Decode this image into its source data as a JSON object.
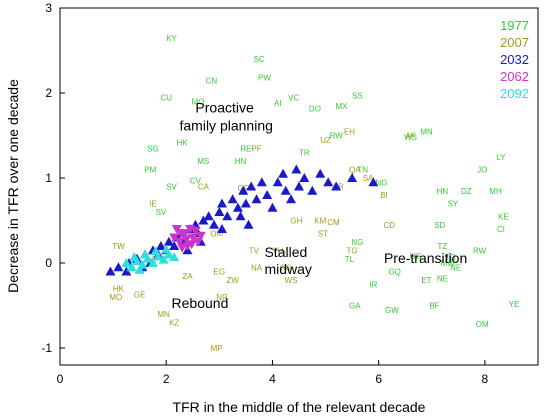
{
  "chart_data": {
    "type": "scatter",
    "xlabel": "TFR in the middle of the relevant decade",
    "ylabel": "Decrease in TFR over one decade",
    "xlim": [
      0,
      9
    ],
    "ylim": [
      -1.2,
      3
    ],
    "xticks": [
      "0",
      "2",
      "4",
      "6",
      "8"
    ],
    "xtick_values": [
      0,
      2,
      4,
      6,
      8
    ],
    "yticks": [
      "-1",
      "0",
      "1",
      "2",
      "3"
    ],
    "ytick_values": [
      -1,
      0,
      1,
      2,
      3
    ],
    "grid": false,
    "legend_position": "top-right",
    "annotations": [
      {
        "text": "Proactive",
        "x": 2.55,
        "y": 1.77
      },
      {
        "text": "family planning",
        "x": 2.25,
        "y": 1.56
      },
      {
        "text": "Pre-transition",
        "x": 6.1,
        "y": 0.0
      },
      {
        "text": "Stalled",
        "x": 3.85,
        "y": 0.07
      },
      {
        "text": "midway",
        "x": 3.85,
        "y": -0.13
      },
      {
        "text": "Rebound",
        "x": 2.1,
        "y": -0.53
      }
    ],
    "series": [
      {
        "name": "1977",
        "color": "#33cc33",
        "marker": "label",
        "points": [
          {
            "label": "KY",
            "x": 2.1,
            "y": 2.65
          },
          {
            "label": "SC",
            "x": 3.75,
            "y": 2.4
          },
          {
            "label": "CN",
            "x": 2.85,
            "y": 2.15
          },
          {
            "label": "PW",
            "x": 3.85,
            "y": 2.18
          },
          {
            "label": "CU",
            "x": 2.0,
            "y": 1.95
          },
          {
            "label": "MO",
            "x": 2.6,
            "y": 1.9
          },
          {
            "label": "SS",
            "x": 5.6,
            "y": 1.97
          },
          {
            "label": "VC",
            "x": 4.4,
            "y": 1.95
          },
          {
            "label": "MX",
            "x": 5.3,
            "y": 1.85
          },
          {
            "label": "AI",
            "x": 4.1,
            "y": 1.88
          },
          {
            "label": "DO",
            "x": 4.8,
            "y": 1.82
          },
          {
            "label": "HK",
            "x": 2.3,
            "y": 1.42
          },
          {
            "label": "SG",
            "x": 1.75,
            "y": 1.35
          },
          {
            "label": "RE",
            "x": 3.5,
            "y": 1.35
          },
          {
            "label": "MN",
            "x": 6.9,
            "y": 1.55
          },
          {
            "label": "WS",
            "x": 6.6,
            "y": 1.48
          },
          {
            "label": "RW",
            "x": 5.2,
            "y": 1.5
          },
          {
            "label": "TR",
            "x": 4.6,
            "y": 1.3
          },
          {
            "label": "TN",
            "x": 5.7,
            "y": 1.1
          },
          {
            "label": "PM",
            "x": 1.7,
            "y": 1.1
          },
          {
            "label": "MS",
            "x": 2.7,
            "y": 1.2
          },
          {
            "label": "HN",
            "x": 3.4,
            "y": 1.2
          },
          {
            "label": "LY",
            "x": 8.3,
            "y": 1.25
          },
          {
            "label": "JO",
            "x": 7.95,
            "y": 1.1
          },
          {
            "label": "MH",
            "x": 8.2,
            "y": 0.85
          },
          {
            "label": "DZ",
            "x": 7.65,
            "y": 0.85
          },
          {
            "label": "HN",
            "x": 7.2,
            "y": 0.85
          },
          {
            "label": "SY",
            "x": 7.4,
            "y": 0.7
          },
          {
            "label": "KE",
            "x": 8.35,
            "y": 0.55
          },
          {
            "label": "CI",
            "x": 8.3,
            "y": 0.4
          },
          {
            "label": "RW",
            "x": 7.9,
            "y": 0.15
          },
          {
            "label": "NG",
            "x": 6.05,
            "y": 0.95
          },
          {
            "label": "SV",
            "x": 2.1,
            "y": 0.9
          },
          {
            "label": "SV",
            "x": 1.9,
            "y": 0.6
          },
          {
            "label": "CV",
            "x": 2.55,
            "y": 0.97
          },
          {
            "label": "TL",
            "x": 5.45,
            "y": 0.05
          },
          {
            "label": "NG",
            "x": 5.6,
            "y": 0.25
          },
          {
            "label": "UG",
            "x": 6.7,
            "y": 0.08
          },
          {
            "label": "TZ",
            "x": 7.2,
            "y": 0.2
          },
          {
            "label": "MW",
            "x": 7.3,
            "y": 0.0
          },
          {
            "label": "NE",
            "x": 7.45,
            "y": -0.05
          },
          {
            "label": "ET",
            "x": 6.9,
            "y": -0.2
          },
          {
            "label": "NE",
            "x": 7.2,
            "y": -0.18
          },
          {
            "label": "GA",
            "x": 5.55,
            "y": -0.5
          },
          {
            "label": "GW",
            "x": 6.25,
            "y": -0.55
          },
          {
            "label": "BF",
            "x": 7.05,
            "y": -0.5
          },
          {
            "label": "YE",
            "x": 8.55,
            "y": -0.48
          },
          {
            "label": "OM",
            "x": 7.95,
            "y": -0.72
          },
          {
            "label": "GQ",
            "x": 6.3,
            "y": -0.1
          },
          {
            "label": "IR",
            "x": 5.9,
            "y": -0.25
          },
          {
            "label": "TD",
            "x": 7.35,
            "y": 0.07
          },
          {
            "label": "SD",
            "x": 7.15,
            "y": 0.45
          }
        ]
      },
      {
        "name": "2007",
        "color": "#a09a1e",
        "marker": "label",
        "points": [
          {
            "label": "IE",
            "x": 1.75,
            "y": 0.7
          },
          {
            "label": "MO",
            "x": 1.05,
            "y": -0.4
          },
          {
            "label": "HK",
            "x": 1.1,
            "y": -0.3
          },
          {
            "label": "GE",
            "x": 1.5,
            "y": -0.37
          },
          {
            "label": "MN",
            "x": 1.95,
            "y": -0.6
          },
          {
            "label": "KZ",
            "x": 2.15,
            "y": -0.7
          },
          {
            "label": "NR",
            "x": 3.05,
            "y": -0.4
          },
          {
            "label": "MP",
            "x": 2.95,
            "y": -1.0
          },
          {
            "label": "ZW",
            "x": 3.25,
            "y": -0.2
          },
          {
            "label": "NA",
            "x": 3.7,
            "y": -0.05
          },
          {
            "label": "TV",
            "x": 3.65,
            "y": 0.15
          },
          {
            "label": "EG",
            "x": 3.0,
            "y": -0.1
          },
          {
            "label": "CG",
            "x": 4.25,
            "y": -0.05
          },
          {
            "label": "WS",
            "x": 4.35,
            "y": -0.2
          },
          {
            "label": "KM",
            "x": 4.9,
            "y": 0.5
          },
          {
            "label": "ST",
            "x": 4.95,
            "y": 0.35
          },
          {
            "label": "CM",
            "x": 5.15,
            "y": 0.48
          },
          {
            "label": "TG",
            "x": 5.5,
            "y": 0.15
          },
          {
            "label": "GH",
            "x": 4.45,
            "y": 0.5
          },
          {
            "label": "LR",
            "x": 5.25,
            "y": 0.9
          },
          {
            "label": "BI",
            "x": 6.1,
            "y": 0.8
          },
          {
            "label": "CD",
            "x": 6.2,
            "y": 0.45
          },
          {
            "label": "AF",
            "x": 6.6,
            "y": 1.5
          },
          {
            "label": "EH",
            "x": 5.45,
            "y": 1.55
          },
          {
            "label": "QA",
            "x": 5.55,
            "y": 1.1
          },
          {
            "label": "UZ",
            "x": 5.0,
            "y": 1.45
          },
          {
            "label": "SA",
            "x": 5.8,
            "y": 1.0
          },
          {
            "label": "GF",
            "x": 3.45,
            "y": 0.88
          },
          {
            "label": "PF",
            "x": 3.7,
            "y": 1.35
          },
          {
            "label": "CA",
            "x": 2.7,
            "y": 0.9
          },
          {
            "label": "OM",
            "x": 2.95,
            "y": 0.35
          },
          {
            "label": "TT",
            "x": 2.45,
            "y": 0.35
          },
          {
            "label": "ZA",
            "x": 2.4,
            "y": -0.15
          },
          {
            "label": "UY",
            "x": 1.75,
            "y": 0.05
          },
          {
            "label": "TW",
            "x": 1.1,
            "y": 0.2
          },
          {
            "label": "VU",
            "x": 4.1,
            "y": 0.15
          }
        ]
      },
      {
        "name": "2032",
        "color": "#1a1acc",
        "marker": "triangle",
        "points": [
          {
            "x": 0.95,
            "y": -0.1
          },
          {
            "x": 1.1,
            "y": -0.05
          },
          {
            "x": 1.25,
            "y": -0.1
          },
          {
            "x": 1.3,
            "y": 0.0
          },
          {
            "x": 1.45,
            "y": 0.05
          },
          {
            "x": 1.55,
            "y": -0.05
          },
          {
            "x": 1.6,
            "y": 0.1
          },
          {
            "x": 1.7,
            "y": 0.0
          },
          {
            "x": 1.75,
            "y": 0.15
          },
          {
            "x": 1.85,
            "y": 0.1
          },
          {
            "x": 1.9,
            "y": 0.2
          },
          {
            "x": 2.0,
            "y": 0.15
          },
          {
            "x": 2.05,
            "y": 0.25
          },
          {
            "x": 2.15,
            "y": 0.2
          },
          {
            "x": 2.2,
            "y": 0.3
          },
          {
            "x": 2.3,
            "y": 0.35
          },
          {
            "x": 2.35,
            "y": 0.25
          },
          {
            "x": 2.45,
            "y": 0.4
          },
          {
            "x": 2.55,
            "y": 0.45
          },
          {
            "x": 2.6,
            "y": 0.35
          },
          {
            "x": 2.7,
            "y": 0.5
          },
          {
            "x": 2.8,
            "y": 0.55
          },
          {
            "x": 2.9,
            "y": 0.45
          },
          {
            "x": 3.0,
            "y": 0.6
          },
          {
            "x": 3.05,
            "y": 0.7
          },
          {
            "x": 3.15,
            "y": 0.55
          },
          {
            "x": 3.25,
            "y": 0.75
          },
          {
            "x": 3.35,
            "y": 0.65
          },
          {
            "x": 3.45,
            "y": 0.85
          },
          {
            "x": 3.5,
            "y": 0.7
          },
          {
            "x": 3.6,
            "y": 0.9
          },
          {
            "x": 3.7,
            "y": 0.75
          },
          {
            "x": 3.8,
            "y": 0.95
          },
          {
            "x": 3.9,
            "y": 0.8
          },
          {
            "x": 4.0,
            "y": 0.65
          },
          {
            "x": 4.1,
            "y": 0.95
          },
          {
            "x": 4.2,
            "y": 1.05
          },
          {
            "x": 4.25,
            "y": 0.85
          },
          {
            "x": 4.35,
            "y": 0.75
          },
          {
            "x": 4.45,
            "y": 1.1
          },
          {
            "x": 4.5,
            "y": 0.9
          },
          {
            "x": 4.6,
            "y": 1.0
          },
          {
            "x": 4.75,
            "y": 0.85
          },
          {
            "x": 4.9,
            "y": 1.05
          },
          {
            "x": 5.05,
            "y": 0.95
          },
          {
            "x": 5.2,
            "y": 0.9
          },
          {
            "x": 5.5,
            "y": 1.0
          },
          {
            "x": 5.9,
            "y": 0.95
          },
          {
            "x": 3.05,
            "y": 0.4
          },
          {
            "x": 3.4,
            "y": 0.55
          },
          {
            "x": 2.4,
            "y": 0.15
          },
          {
            "x": 2.65,
            "y": 0.25
          },
          {
            "x": 3.55,
            "y": 0.45
          }
        ]
      },
      {
        "name": "2062",
        "color": "#cc33cc",
        "marker": "triangle-down",
        "points": [
          {
            "x": 2.15,
            "y": 0.3
          },
          {
            "x": 2.25,
            "y": 0.25
          },
          {
            "x": 2.35,
            "y": 0.35
          },
          {
            "x": 2.4,
            "y": 0.2
          },
          {
            "x": 2.5,
            "y": 0.3
          },
          {
            "x": 2.45,
            "y": 0.4
          },
          {
            "x": 2.6,
            "y": 0.25
          },
          {
            "x": 2.3,
            "y": 0.18
          },
          {
            "x": 2.55,
            "y": 0.38
          },
          {
            "x": 2.2,
            "y": 0.4
          },
          {
            "x": 2.65,
            "y": 0.32
          },
          {
            "x": 2.38,
            "y": 0.28
          },
          {
            "x": 2.48,
            "y": 0.22
          },
          {
            "x": 2.28,
            "y": 0.35
          }
        ]
      },
      {
        "name": "2092",
        "color": "#33dddd",
        "marker": "triangle",
        "points": [
          {
            "x": 1.25,
            "y": 0.0
          },
          {
            "x": 1.35,
            "y": -0.05
          },
          {
            "x": 1.45,
            "y": 0.02
          },
          {
            "x": 1.55,
            "y": -0.02
          },
          {
            "x": 1.65,
            "y": 0.05
          },
          {
            "x": 1.75,
            "y": 0.0
          },
          {
            "x": 1.85,
            "y": 0.08
          },
          {
            "x": 1.95,
            "y": 0.04
          },
          {
            "x": 2.05,
            "y": 0.1
          },
          {
            "x": 2.15,
            "y": 0.07
          },
          {
            "x": 1.4,
            "y": 0.07
          },
          {
            "x": 1.6,
            "y": 0.1
          },
          {
            "x": 1.8,
            "y": 0.14
          },
          {
            "x": 2.0,
            "y": 0.16
          },
          {
            "x": 1.5,
            "y": -0.08
          }
        ]
      }
    ]
  }
}
